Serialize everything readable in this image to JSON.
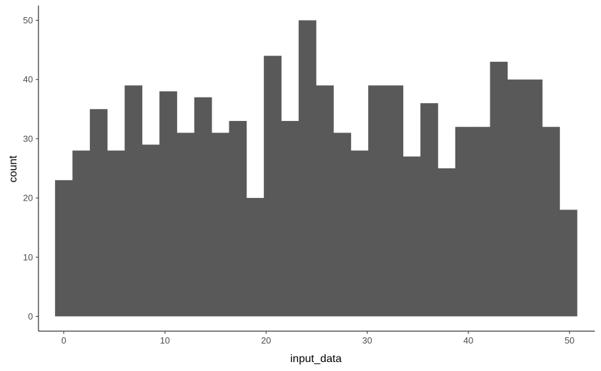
{
  "chart_data": {
    "type": "bar",
    "title": "",
    "xlabel": "input_data",
    "ylabel": "count",
    "bar_color": "#595959",
    "axis_color": "#000000",
    "background": "#ffffff",
    "grid": false,
    "xlim": [
      -2.5,
      52.5
    ],
    "ylim": [
      -2.5,
      52.5
    ],
    "x_ticks": [
      0,
      10,
      20,
      30,
      40,
      50
    ],
    "y_ticks": [
      0,
      10,
      20,
      30,
      40,
      50
    ],
    "bin_width": 1.72,
    "bin_start": -0.86,
    "counts": [
      23,
      28,
      35,
      28,
      39,
      29,
      38,
      31,
      37,
      31,
      33,
      20,
      44,
      33,
      50,
      39,
      31,
      28,
      39,
      39,
      27,
      36,
      25,
      32,
      32,
      43,
      40,
      40,
      32,
      18
    ]
  }
}
